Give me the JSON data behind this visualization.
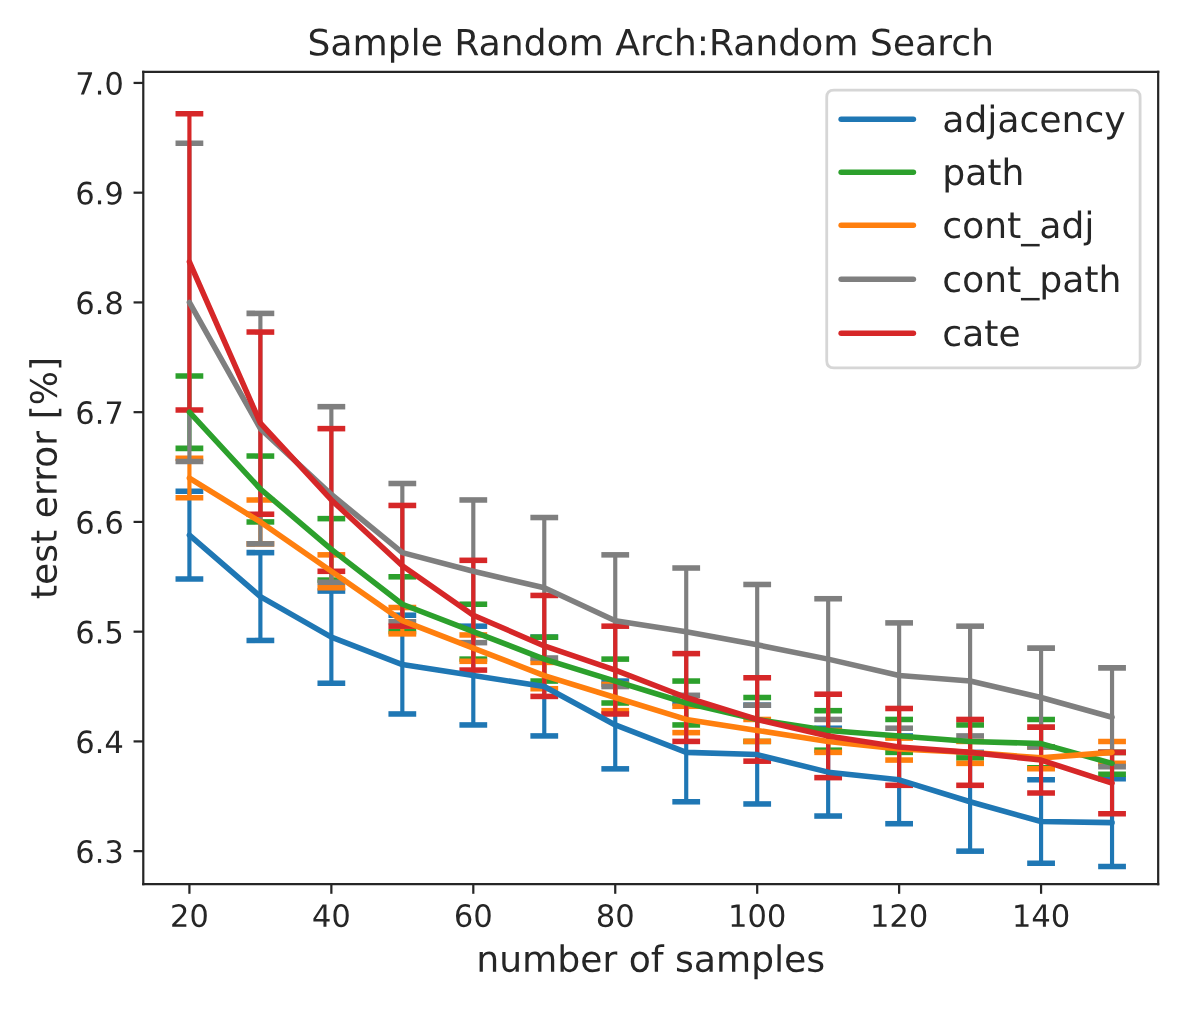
{
  "chart_data": {
    "type": "line",
    "title": "Sample Random Arch:Random Search",
    "xlabel": "number of samples",
    "ylabel": "test error [%]",
    "x": [
      20,
      30,
      40,
      50,
      60,
      70,
      80,
      90,
      100,
      110,
      120,
      130,
      140,
      150
    ],
    "series": [
      {
        "name": "adjacency",
        "color": "#1f77b4",
        "values": [
          6.588,
          6.532,
          6.495,
          6.47,
          6.46,
          6.45,
          6.415,
          6.39,
          6.388,
          6.372,
          6.365,
          6.345,
          6.327,
          6.326
        ],
        "errors": [
          0.04,
          0.04,
          0.042,
          0.045,
          0.045,
          0.045,
          0.04,
          0.045,
          0.045,
          0.04,
          0.04,
          0.045,
          0.038,
          0.04
        ]
      },
      {
        "name": "path",
        "color": "#2ca02c",
        "values": [
          6.7,
          6.63,
          6.575,
          6.525,
          6.5,
          6.475,
          6.455,
          6.435,
          6.42,
          6.41,
          6.405,
          6.4,
          6.398,
          6.38
        ],
        "errors": [
          0.033,
          0.03,
          0.028,
          0.025,
          0.025,
          0.02,
          0.02,
          0.02,
          0.02,
          0.018,
          0.015,
          0.015,
          0.022,
          0.01
        ]
      },
      {
        "name": "cont_adj",
        "color": "#ff7f0e",
        "values": [
          6.64,
          6.6,
          6.555,
          6.51,
          6.485,
          6.46,
          6.44,
          6.42,
          6.41,
          6.4,
          6.393,
          6.39,
          6.385,
          6.39
        ],
        "errors": [
          0.018,
          0.02,
          0.015,
          0.012,
          0.012,
          0.012,
          0.012,
          0.012,
          0.01,
          0.01,
          0.01,
          0.01,
          0.01,
          0.01
        ]
      },
      {
        "name": "cont_path",
        "color": "#7f7f7f",
        "values": [
          6.8,
          6.685,
          6.625,
          6.572,
          6.555,
          6.54,
          6.51,
          6.5,
          6.488,
          6.475,
          6.46,
          6.455,
          6.44,
          6.422
        ],
        "errors": [
          0.145,
          0.105,
          0.08,
          0.063,
          0.065,
          0.064,
          0.06,
          0.058,
          0.055,
          0.055,
          0.048,
          0.05,
          0.045,
          0.045
        ]
      },
      {
        "name": "cate",
        "color": "#d62728",
        "values": [
          6.837,
          6.69,
          6.62,
          6.56,
          6.515,
          6.487,
          6.465,
          6.44,
          6.42,
          6.405,
          6.395,
          6.39,
          6.383,
          6.362
        ],
        "errors": [
          0.135,
          0.083,
          0.065,
          0.055,
          0.05,
          0.046,
          0.04,
          0.04,
          0.038,
          0.038,
          0.035,
          0.03,
          0.03,
          0.028
        ]
      }
    ],
    "xlim": [
      13.5,
      156.5
    ],
    "xticks": [
      20,
      40,
      60,
      80,
      100,
      120,
      140
    ],
    "ylim": [
      6.27,
      7.01
    ],
    "yticks": [
      6.3,
      6.4,
      6.5,
      6.6,
      6.7,
      6.8,
      6.9,
      {
        "value": 7.0,
        "label": "7.0"
      }
    ],
    "grid": false,
    "legend": "top right",
    "marker": "none",
    "line_style": "solid"
  }
}
